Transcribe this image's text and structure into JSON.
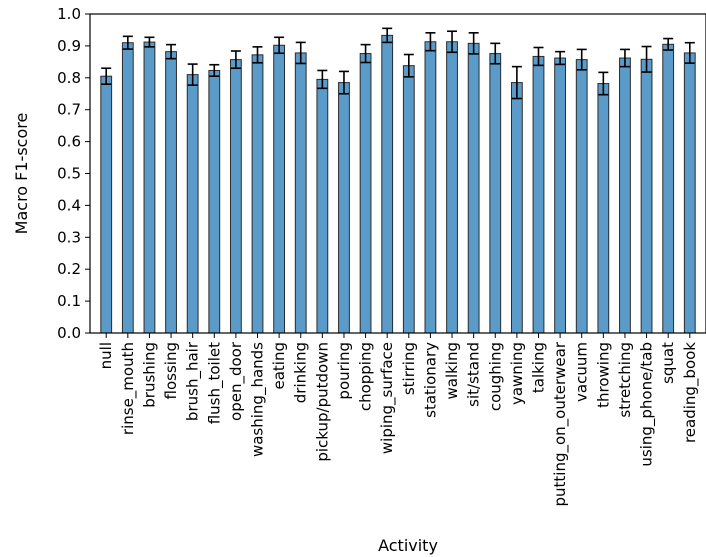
{
  "chart_data": {
    "type": "bar",
    "xlabel": "Activity",
    "ylabel": "Macro F1-score",
    "ylim": [
      0.0,
      1.0
    ],
    "yticks": [
      "0.0",
      "0.1",
      "0.2",
      "0.3",
      "0.4",
      "0.5",
      "0.6",
      "0.7",
      "0.8",
      "0.9",
      "1.0"
    ],
    "grid": false,
    "bar_color": "#5b9bc9",
    "edge_color": "#2b2b2b",
    "categories": [
      "null",
      "rinse_mouth",
      "brushing",
      "flossing",
      "brush_hair",
      "flush_toilet",
      "open_door",
      "washing_hands",
      "eating",
      "drinking",
      "pickup/putdown",
      "pouring",
      "chopping",
      "wiping_surface",
      "stirring",
      "stationary",
      "walking",
      "sit/stand",
      "coughing",
      "yawning",
      "talking",
      "putting_on_outerwear",
      "vacuum",
      "throwing",
      "stretching",
      "using_phone/tab",
      "squat",
      "reading_book"
    ],
    "values": [
      0.805,
      0.91,
      0.912,
      0.882,
      0.81,
      0.823,
      0.857,
      0.872,
      0.902,
      0.878,
      0.795,
      0.785,
      0.876,
      0.933,
      0.838,
      0.913,
      0.913,
      0.908,
      0.876,
      0.785,
      0.867,
      0.862,
      0.857,
      0.782,
      0.862,
      0.858,
      0.905,
      0.878
    ],
    "errors": [
      0.025,
      0.02,
      0.015,
      0.022,
      0.033,
      0.018,
      0.027,
      0.025,
      0.025,
      0.033,
      0.028,
      0.035,
      0.028,
      0.022,
      0.035,
      0.028,
      0.033,
      0.033,
      0.032,
      0.05,
      0.028,
      0.02,
      0.032,
      0.035,
      0.027,
      0.04,
      0.018,
      0.032
    ]
  }
}
